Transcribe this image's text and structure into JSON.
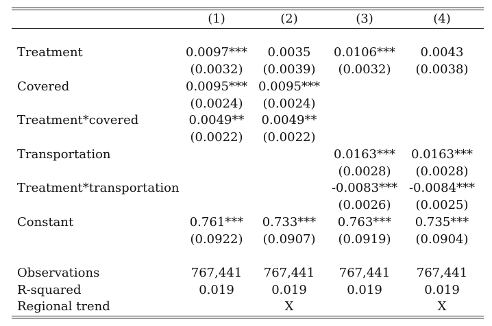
{
  "table": {
    "column_headers": [
      "(1)",
      "(2)",
      "(3)",
      "(4)"
    ],
    "rows": [
      {
        "label": "Treatment",
        "values": [
          "0.0097***",
          "0.0035",
          "0.0106***",
          "0.0043"
        ],
        "se": [
          "(0.0032)",
          "(0.0039)",
          "(0.0032)",
          "(0.0038)"
        ]
      },
      {
        "label": "Covered",
        "values": [
          "0.0095***",
          "0.0095***",
          "",
          ""
        ],
        "se": [
          "(0.0024)",
          "(0.0024)",
          "",
          ""
        ]
      },
      {
        "label": "Treatment*covered",
        "values": [
          "0.0049**",
          "0.0049**",
          "",
          ""
        ],
        "se": [
          "(0.0022)",
          "(0.0022)",
          "",
          ""
        ]
      },
      {
        "label": "Transportation",
        "values": [
          "",
          "",
          "0.0163***",
          "0.0163***"
        ],
        "se": [
          "",
          "",
          "(0.0028)",
          "(0.0028)"
        ]
      },
      {
        "label": "Treatment*transportation",
        "values": [
          "",
          "",
          "-0.0083***",
          "-0.0084***"
        ],
        "se": [
          "",
          "",
          "(0.0026)",
          "(0.0025)"
        ]
      },
      {
        "label": "Constant",
        "values": [
          "0.761***",
          "0.733***",
          "0.763***",
          "0.735***"
        ],
        "se": [
          "(0.0922)",
          "(0.0907)",
          "(0.0919)",
          "(0.0904)"
        ]
      }
    ],
    "stats": [
      {
        "label": "Observations",
        "values": [
          "767,441",
          "767,441",
          "767,441",
          "767,441"
        ]
      },
      {
        "label": "R-squared",
        "values": [
          "0.019",
          "0.019",
          "0.019",
          "0.019"
        ]
      },
      {
        "label": "Regional trend",
        "values": [
          "",
          "X",
          "",
          "X"
        ]
      }
    ]
  }
}
